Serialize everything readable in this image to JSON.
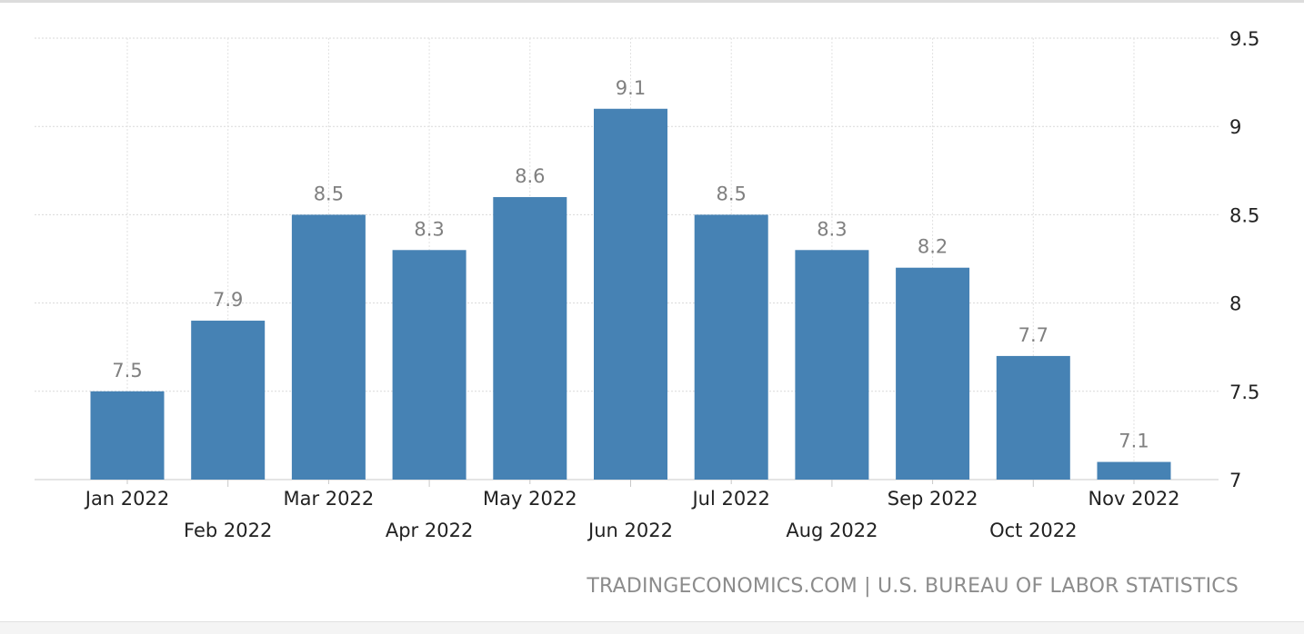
{
  "chart_data": {
    "type": "bar",
    "categories": [
      "Jan 2022",
      "Feb 2022",
      "Mar 2022",
      "Apr 2022",
      "May 2022",
      "Jun 2022",
      "Jul 2022",
      "Aug 2022",
      "Sep 2022",
      "Oct 2022",
      "Nov 2022"
    ],
    "values": [
      7.5,
      7.9,
      8.5,
      8.3,
      8.6,
      9.1,
      8.5,
      8.3,
      8.2,
      7.7,
      7.1
    ],
    "data_labels": [
      "7.5",
      "7.9",
      "8.5",
      "8.3",
      "8.6",
      "9.1",
      "8.5",
      "8.3",
      "8.2",
      "7.7",
      "7.1"
    ],
    "ylim": [
      7,
      9.5
    ],
    "y_ticks": [
      "7",
      "7.5",
      "8",
      "8.5",
      "9",
      "9.5"
    ],
    "y_axis_position": "right",
    "grid": true,
    "bar_color": "#4682b4",
    "label_color": "#808080",
    "title": "",
    "xlabel": "",
    "ylabel": ""
  },
  "source_text": "TRADINGECONOMICS.COM | U.S. BUREAU OF LABOR STATISTICS"
}
